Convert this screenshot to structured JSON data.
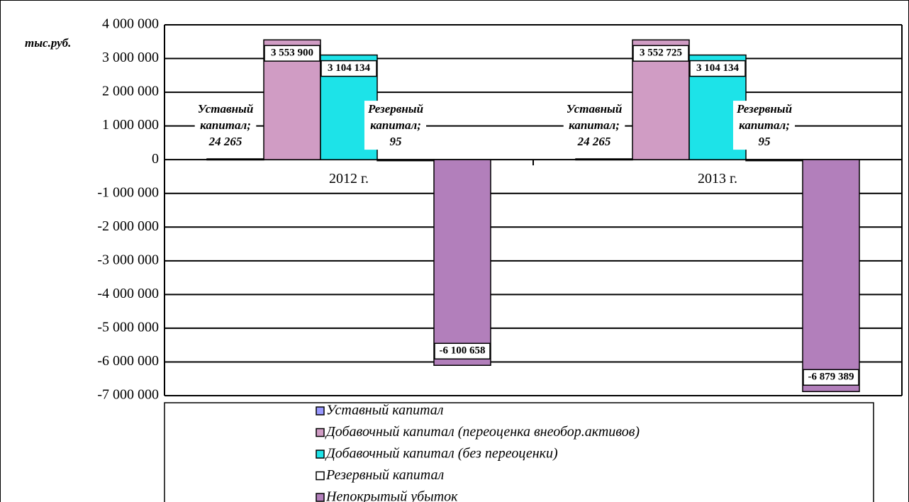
{
  "chart_data": {
    "type": "bar",
    "ylabel": "тыс.руб.",
    "categories": [
      "2012 г.",
      "2013 г."
    ],
    "series": [
      {
        "name": "Уставный капитал",
        "color": "#9999ff",
        "values": [
          24265,
          24265
        ],
        "value_labels": [
          [
            "Уставный",
            "капитал;",
            "24 265"
          ],
          [
            "Уставный",
            "капитал;",
            "24 265"
          ]
        ]
      },
      {
        "name": "Добавочный капитал (переоценка внеобор.активов)",
        "color": "#d09cc4",
        "values": [
          3553900,
          3552725
        ],
        "value_labels": [
          [
            "3 553 900"
          ],
          [
            "3 552 725"
          ]
        ]
      },
      {
        "name": "Добавочный капитал (без переоценки)",
        "color": "#1de3e8",
        "values": [
          3104134,
          3104134
        ],
        "value_labels": [
          [
            "3 104 134"
          ],
          [
            "3 104 134"
          ]
        ]
      },
      {
        "name": "Резервный капитал",
        "color": "#ffffff",
        "values": [
          95,
          95
        ],
        "value_labels": [
          [
            "Резервный",
            "капитал;",
            "95"
          ],
          [
            "Резервный",
            "капитал;",
            "95"
          ]
        ]
      },
      {
        "name": "Непокрытый убыток",
        "color": "#b27fbb",
        "values": [
          -6100658,
          -6879389
        ],
        "value_labels": [
          [
            "-6 100 658"
          ],
          [
            "-6 879 389"
          ]
        ]
      }
    ],
    "ylim": [
      -7000000,
      4000000
    ],
    "yticks": [
      {
        "value": 4000000,
        "label": "4 000 000"
      },
      {
        "value": 3000000,
        "label": "3 000 000"
      },
      {
        "value": 2000000,
        "label": "2 000 000"
      },
      {
        "value": 1000000,
        "label": "1 000 000"
      },
      0,
      {
        "value": -1000000,
        "label": "-1 000 000"
      },
      {
        "value": -2000000,
        "label": "-2 000 000"
      },
      {
        "value": -3000000,
        "label": "-3 000 000"
      },
      {
        "value": -4000000,
        "label": "-4 000 000"
      },
      {
        "value": -5000000,
        "label": "-5 000 000"
      },
      {
        "value": -6000000,
        "label": "-6 000 000"
      },
      {
        "value": -7000000,
        "label": "-7 000 000"
      }
    ],
    "grid": true,
    "legend": "bottom"
  }
}
